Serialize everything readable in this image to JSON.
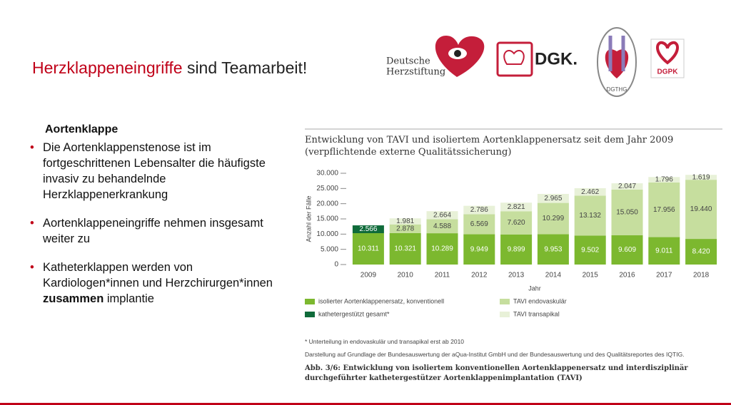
{
  "slide": {
    "title_highlight": "Herzklappeneingriffe",
    "title_rest": "sind Teamarbeit!",
    "logos": {
      "herzstiftung": [
        "Deutsche",
        "Herzstiftung"
      ],
      "dgk": "DGK.",
      "dgthg": "DGTHG",
      "dgpk": "DGPK"
    },
    "heading": "Aortenklappe",
    "bullets": [
      [
        "Die Aortenklappenstenose ist im fortgeschrittenen Lebensalter die häufigste invasiv zu behandelnde Herzklappenerkrankung"
      ],
      [
        "Aortenklappeneingriffe nehmen insgesamt weiter zu"
      ],
      [
        "Katheterklappen werden von Kardiologen*innen und Herzchirurgen*innen ",
        "zusammen",
        " implantie"
      ]
    ]
  },
  "chart_data": {
    "type": "stacked-bar",
    "title": "Entwicklung von TAVI und isoliertem Aortenklappenersatz seit dem Jahr 2009 (verpflichtende externe Qualitätssicherung)",
    "y_label": "Anzahl der Fälle",
    "x_label": "Jahr",
    "categories": [
      "2009",
      "2010",
      "2011",
      "2012",
      "2013",
      "2014",
      "2015",
      "2016",
      "2017",
      "2018"
    ],
    "series": [
      {
        "name": "isolierter Aortenklappenersatz, konventionell",
        "color": "#7cb82f",
        "label_color": "#ffffff",
        "values": [
          10311,
          10321,
          10289,
          9949,
          9899,
          9953,
          9502,
          9609,
          9011,
          8420
        ],
        "value_labels": [
          "10.311",
          "10.321",
          "10.289",
          "9.949",
          "9.899",
          "9.953",
          "9.502",
          "9.609",
          "9.011",
          "8.420"
        ]
      },
      {
        "name": "kathetergestützt gesamt*",
        "color": "#0f6b3a",
        "label_color": "#ffffff",
        "values": [
          2566,
          null,
          null,
          null,
          null,
          null,
          null,
          null,
          null,
          null
        ],
        "value_labels": [
          "2.566",
          null,
          null,
          null,
          null,
          null,
          null,
          null,
          null,
          null
        ]
      },
      {
        "name": "TAVI endovaskulär",
        "color": "#c6de9e",
        "label_color": "#444444",
        "values": [
          null,
          2878,
          4588,
          6569,
          7620,
          10299,
          13132,
          15050,
          17956,
          19440
        ],
        "value_labels": [
          null,
          "2.878",
          "4.588",
          "6.569",
          "7.620",
          "10.299",
          "13.132",
          "15.050",
          "17.956",
          "19.440"
        ]
      },
      {
        "name": "TAVI transapikal",
        "color": "#e8f1d8",
        "label_color": "#444444",
        "values": [
          null,
          1981,
          2664,
          2786,
          2821,
          2965,
          2462,
          2047,
          1796,
          1619
        ],
        "value_labels": [
          null,
          "1.981",
          "2.664",
          "2.786",
          "2.821",
          "2.965",
          "2.462",
          "2.047",
          "1.796",
          "1.619"
        ]
      }
    ],
    "ylim": [
      0,
      30000
    ],
    "yticks": [
      0,
      {
        "value": 5000,
        "label": "5.000"
      },
      {
        "value": 10000,
        "label": "10.000"
      },
      {
        "value": 15000,
        "label": "15.000"
      },
      {
        "value": 20000,
        "label": "20.000"
      },
      {
        "value": 25000,
        "label": "25.000"
      },
      {
        "value": 30000,
        "label": "30.000"
      }
    ],
    "grid": false,
    "footnote": "* Unterteilung in endovaskulär und transapikal erst ab 2010",
    "source": "Darstellung auf Grundlage der Bundesauswertung der aQua-Institut GmbH und der Bundesauswertung und des Qualitätsreportes des IQTIG.",
    "caption": "Abb. 3/6: Entwicklung von isoliertem konventionellen Aortenklappenersatz und interdisziplinär durchgeführter kathetergestützer Aortenklappenimplantation (TAVI)"
  }
}
